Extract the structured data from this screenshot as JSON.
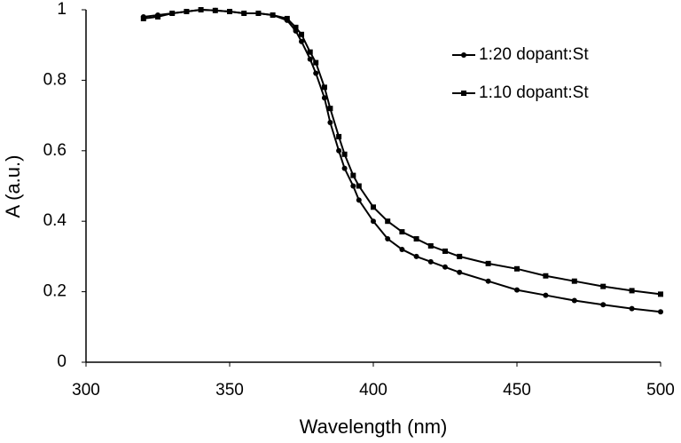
{
  "chart_data": {
    "type": "line",
    "xlabel": "Wavelength (nm)",
    "ylabel": "A (a.u.)",
    "x": [
      320,
      325,
      330,
      335,
      340,
      345,
      350,
      355,
      360,
      365,
      370,
      373,
      375,
      378,
      380,
      383,
      385,
      388,
      390,
      393,
      395,
      400,
      405,
      410,
      415,
      420,
      425,
      430,
      440,
      450,
      460,
      470,
      480,
      490,
      500
    ],
    "series": [
      {
        "name": "1:20 dopant:St",
        "color": "#000000",
        "marker": "circle",
        "values": [
          0.98,
          0.985,
          0.99,
          0.995,
          1.0,
          0.998,
          0.995,
          0.99,
          0.99,
          0.985,
          0.97,
          0.94,
          0.91,
          0.86,
          0.82,
          0.75,
          0.68,
          0.6,
          0.55,
          0.5,
          0.46,
          0.4,
          0.35,
          0.32,
          0.3,
          0.285,
          0.27,
          0.255,
          0.23,
          0.205,
          0.19,
          0.175,
          0.163,
          0.152,
          0.143
        ]
      },
      {
        "name": "1:10 dopant:St",
        "color": "#000000",
        "marker": "square",
        "values": [
          0.975,
          0.98,
          0.99,
          0.995,
          1.0,
          0.998,
          0.995,
          0.99,
          0.99,
          0.985,
          0.975,
          0.95,
          0.93,
          0.88,
          0.85,
          0.78,
          0.72,
          0.64,
          0.59,
          0.53,
          0.5,
          0.44,
          0.4,
          0.37,
          0.35,
          0.33,
          0.315,
          0.3,
          0.28,
          0.265,
          0.245,
          0.23,
          0.215,
          0.203,
          0.193
        ]
      }
    ],
    "xlim": [
      300,
      500
    ],
    "xticks": [
      300,
      350,
      400,
      450,
      500
    ],
    "ylim": [
      0,
      1
    ],
    "yticks": [
      0,
      0.2,
      0.4,
      0.6,
      0.8,
      1
    ],
    "grid": false,
    "legend": "upper right"
  }
}
